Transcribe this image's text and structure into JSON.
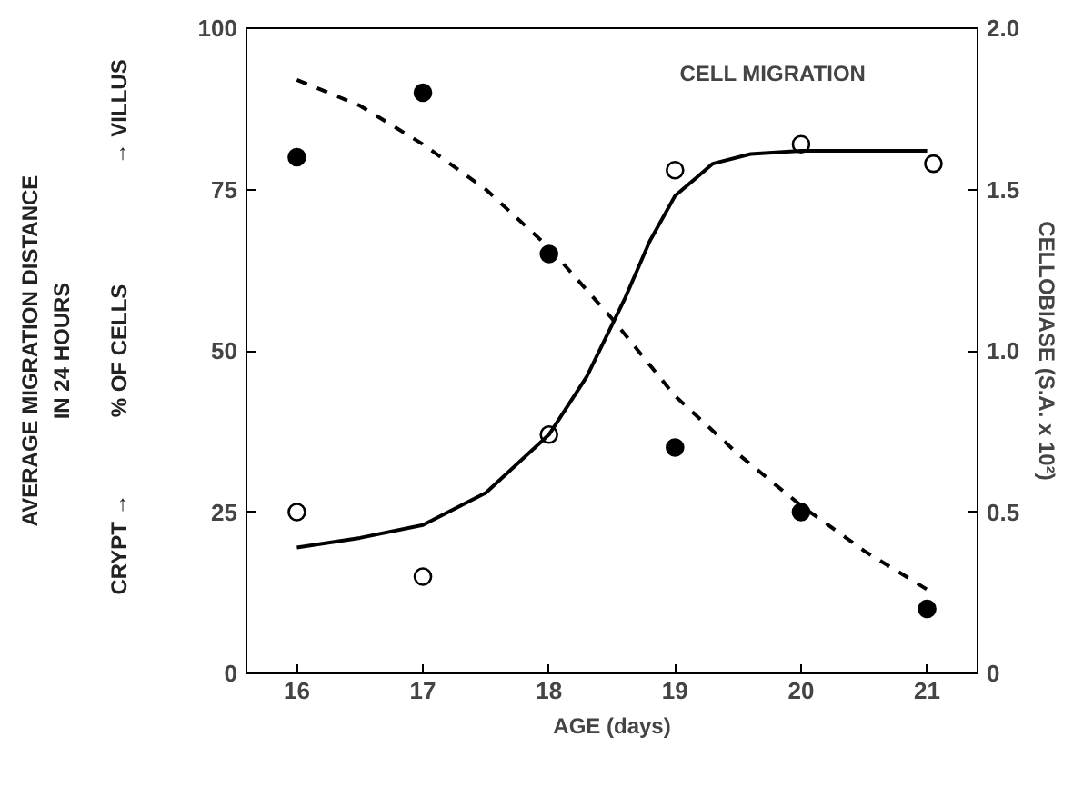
{
  "chart_data": {
    "type": "scatter",
    "xlabel": "AGE (days)",
    "ylabel": "AVERAGE MIGRATION DISTANCE\nIN 24 HOURS\n% OF CELLS",
    "y2label": "CELLOBIASE (S.A. x 10²)",
    "x": [
      16,
      17,
      18,
      19,
      20,
      21
    ],
    "xlim": [
      15.6,
      21.4
    ],
    "xticks": [
      16,
      17,
      18,
      19,
      20,
      21
    ],
    "ylim": [
      0,
      100
    ],
    "yticks": [
      0,
      25,
      50,
      75,
      100
    ],
    "y2lim": [
      0,
      2.0
    ],
    "y2ticks": [
      {
        "value": 0,
        "label": "0"
      },
      {
        "value": 0.5,
        "label": "0.5"
      },
      {
        "value": 1.0,
        "label": "1.0"
      },
      {
        "value": 1.5,
        "label": "1.5"
      },
      {
        "value": 2.0,
        "label": "2.0"
      }
    ],
    "grid": false,
    "series": [
      {
        "type": "scatter",
        "marker": "circle",
        "color": "#ffffff",
        "x": [
          16,
          17,
          18,
          19,
          20,
          21.05
        ],
        "values": [
          25,
          15,
          37,
          78,
          82,
          79
        ]
      },
      {
        "type": "scatter",
        "marker": "circle",
        "color": "#000000",
        "axis": "y2",
        "values": [
          1.6,
          1.8,
          1.3,
          0.7,
          0.5,
          0.2
        ]
      },
      {
        "type": "line",
        "marker": "none",
        "line_style": "solid",
        "color": "#000000",
        "x": [
          16,
          16.5,
          17,
          17.5,
          18,
          18.3,
          18.6,
          18.8,
          19,
          19.3,
          19.6,
          20,
          20.5,
          21
        ],
        "values": [
          19.5,
          21,
          23,
          28,
          37,
          46,
          58,
          67,
          74,
          79,
          80.5,
          81,
          81,
          81
        ]
      },
      {
        "type": "line",
        "marker": "none",
        "line_style": "dashed",
        "color": "#000000",
        "axis": "y2",
        "x": [
          16,
          16.5,
          17,
          17.5,
          18,
          18.5,
          19,
          19.5,
          20,
          20.5,
          21
        ],
        "values": [
          1.84,
          1.76,
          1.64,
          1.5,
          1.32,
          1.1,
          0.86,
          0.68,
          0.52,
          0.38,
          0.26
        ]
      }
    ],
    "annotations": [
      "CELL MIGRATION",
      "CRYPT →",
      "→ VILLUS"
    ]
  }
}
